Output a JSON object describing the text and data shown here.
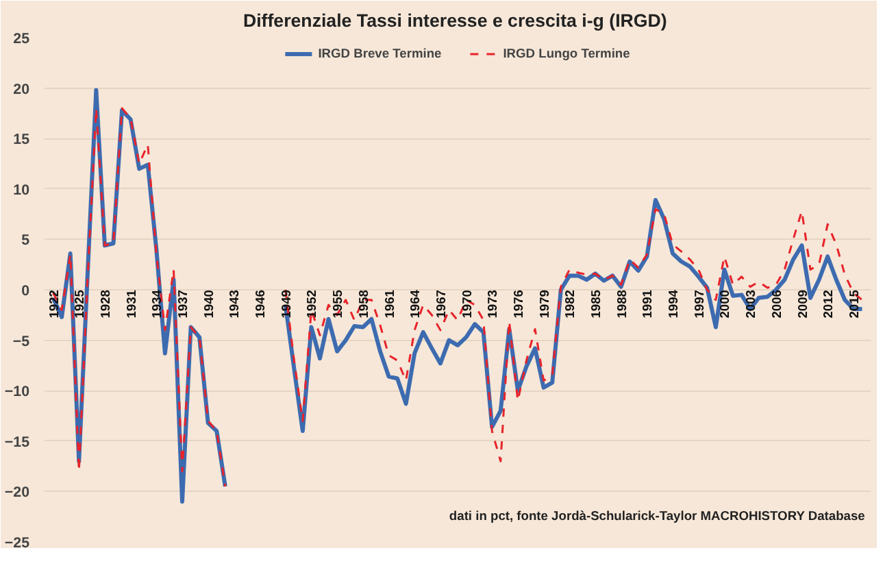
{
  "chart_data": {
    "type": "line",
    "title": "Differenziale Tassi  interesse e crescita i-g (IRGD)",
    "x": [
      1922,
      1923,
      1924,
      1925,
      1926,
      1927,
      1928,
      1929,
      1930,
      1931,
      1932,
      1933,
      1934,
      1935,
      1936,
      1937,
      1938,
      1939,
      1940,
      1941,
      1942,
      1943,
      1944,
      1945,
      1946,
      1947,
      1948,
      1949,
      1950,
      1951,
      1952,
      1953,
      1954,
      1955,
      1956,
      1957,
      1958,
      1959,
      1960,
      1961,
      1962,
      1963,
      1964,
      1965,
      1966,
      1967,
      1968,
      1969,
      1970,
      1971,
      1972,
      1973,
      1974,
      1975,
      1976,
      1977,
      1978,
      1979,
      1980,
      1981,
      1982,
      1983,
      1984,
      1985,
      1986,
      1987,
      1988,
      1989,
      1990,
      1991,
      1992,
      1993,
      1994,
      1995,
      1996,
      1997,
      1998,
      1999,
      2000,
      2001,
      2002,
      2003,
      2004,
      2005,
      2006,
      2007,
      2008,
      2009,
      2010,
      2011,
      2012,
      2013,
      2014,
      2015,
      2016
    ],
    "series": [
      {
        "name": "IRGD Breve Termine",
        "color": "#3d6bb0",
        "line_style": "solid",
        "values": [
          -0.8,
          -2.7,
          3.6,
          -17,
          1.5,
          19.8,
          4.4,
          4.6,
          17.8,
          16.9,
          12,
          12.4,
          4,
          -6.3,
          1,
          -21,
          -3.7,
          -4.7,
          -13.2,
          -14,
          -19.5,
          null,
          null,
          null,
          null,
          null,
          null,
          -1.5,
          -7.8,
          -14,
          -3.7,
          -6.8,
          -2.9,
          -6.1,
          -5,
          -3.6,
          -3.7,
          -2.9,
          -6.1,
          -8.6,
          -8.8,
          -11.3,
          -6.3,
          -4.2,
          -5.8,
          -7.3,
          -5,
          -5.5,
          -4.7,
          -3.4,
          -4.2,
          -13.6,
          -12,
          -3.9,
          -10,
          -7.6,
          -5.8,
          -9.7,
          -9.2,
          0,
          1.4,
          1.4,
          1,
          1.6,
          0.9,
          1.4,
          0.3,
          2.8,
          1.9,
          3.3,
          8.9,
          7,
          3.6,
          2.8,
          2.3,
          1.3,
          0.2,
          -3.7,
          2,
          -0.6,
          -0.5,
          -1.9,
          -0.8,
          -0.7,
          0,
          1,
          3,
          4.4,
          -0.8,
          1,
          3.3,
          1,
          -1,
          -1.9,
          -1.9
        ]
      },
      {
        "name": "IRGD Lungo Termine",
        "color": "#e8232a",
        "line_style": "dashed",
        "values": [
          -0.3,
          -2,
          3.5,
          -18,
          1,
          18,
          4.4,
          4.6,
          18,
          17,
          12.5,
          14.4,
          3.5,
          -4,
          2,
          -18,
          -3.7,
          -4.7,
          -13,
          -14,
          -19.5,
          null,
          null,
          null,
          null,
          null,
          null,
          0,
          -7,
          -13,
          -2,
          -4.5,
          -1.5,
          -2.5,
          -1,
          -3,
          -1,
          -1,
          -3.5,
          -6.5,
          -7,
          -9,
          -4,
          -1.5,
          -2.5,
          -4,
          -2,
          -3,
          -1,
          -1.5,
          -3,
          -14,
          -17,
          -3.1,
          -11,
          -7,
          -3.9,
          -9,
          -8.5,
          0.3,
          2,
          1.7,
          1.5,
          1.6,
          1,
          1.4,
          0.5,
          3,
          2.2,
          3.5,
          8,
          7.5,
          4.5,
          3.8,
          3,
          2,
          0,
          -1,
          3.3,
          0.5,
          1.3,
          0.3,
          0.8,
          0.2,
          0.5,
          2,
          5,
          7.8,
          2,
          2.5,
          6.5,
          4.5,
          1.5,
          -0.3,
          -1
        ]
      }
    ],
    "xlim": [
      1921,
      2017
    ],
    "xticks": [
      1922,
      1925,
      1928,
      1931,
      1934,
      1937,
      1940,
      1943,
      1946,
      1949,
      1952,
      1955,
      1958,
      1961,
      1964,
      1967,
      1970,
      1973,
      1976,
      1979,
      1982,
      1985,
      1988,
      1991,
      1994,
      1997,
      2000,
      2003,
      2006,
      2009,
      2012,
      2015
    ],
    "ylim": [
      -25,
      25
    ],
    "yticks": [
      -25,
      -20,
      -15,
      -10,
      -5,
      0,
      5,
      10,
      15,
      20,
      25
    ],
    "grid": "y",
    "legend": "top",
    "annotations": [
      "dati in pct, fonte Jordà-Schularick-Taylor MACROHISTORY Database"
    ]
  }
}
